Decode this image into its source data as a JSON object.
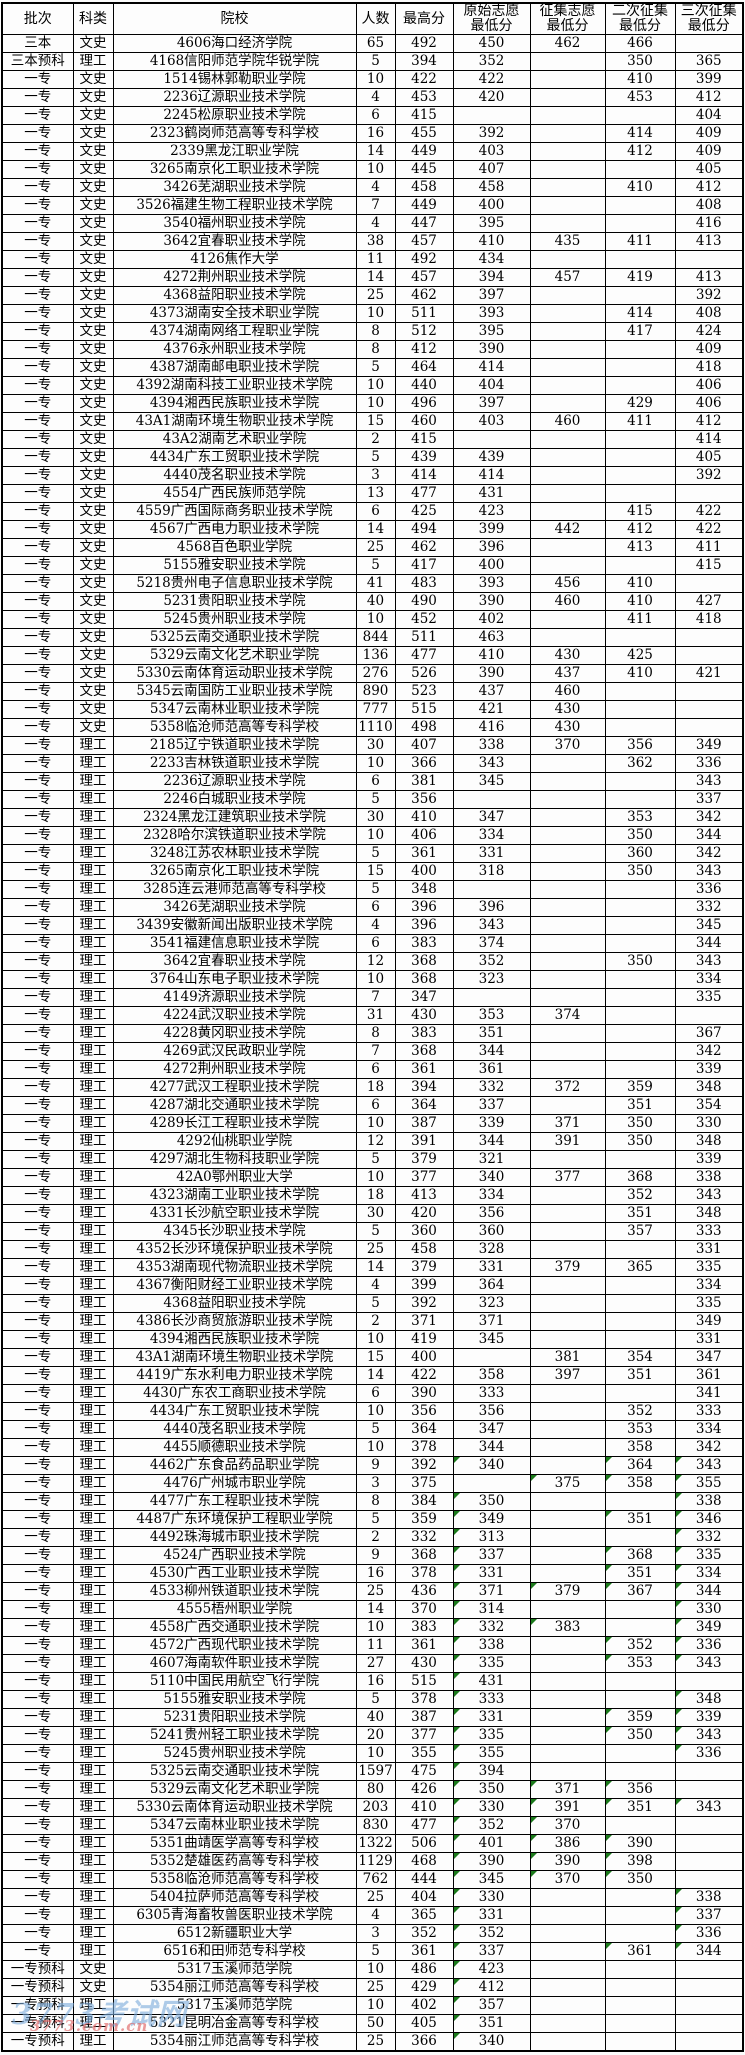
{
  "table": {
    "columns": [
      {
        "key": "batch",
        "label": "批次"
      },
      {
        "key": "category",
        "label": "科类"
      },
      {
        "key": "school",
        "label": "院校"
      },
      {
        "key": "count",
        "label": "人数"
      },
      {
        "key": "max-score",
        "label": "最高分"
      },
      {
        "key": "original-volunteer-min",
        "label": "原始志愿\n最低分"
      },
      {
        "key": "collected-volunteer-min",
        "label": "征集志愿\n最低分"
      },
      {
        "key": "second-collection-min",
        "label": "二次征集\n最低分"
      },
      {
        "key": "third-collection-min",
        "label": "三次征集\n最低分"
      }
    ],
    "rows": [
      [
        "三本",
        "文史",
        "4606海口经济学院",
        "65",
        "492",
        "450",
        "462",
        "466",
        ""
      ],
      [
        "三本预科",
        "理工",
        "4168信阳师范学院华锐学院",
        "5",
        "394",
        "352",
        "",
        "350",
        "365"
      ],
      [
        "一专",
        "文史",
        "1514锡林郭勒职业学院",
        "10",
        "422",
        "422",
        "",
        "410",
        "399"
      ],
      [
        "一专",
        "文史",
        "2236辽源职业技术学院",
        "4",
        "453",
        "420",
        "",
        "453",
        "412"
      ],
      [
        "一专",
        "文史",
        "2245松原职业技术学院",
        "6",
        "415",
        "",
        "",
        "",
        "404"
      ],
      [
        "一专",
        "文史",
        "2323鹤岗师范高等专科学校",
        "16",
        "455",
        "392",
        "",
        "414",
        "409"
      ],
      [
        "一专",
        "文史",
        "2339黑龙江职业学院",
        "14",
        "449",
        "403",
        "",
        "412",
        "409"
      ],
      [
        "一专",
        "文史",
        "3265南京化工职业技术学院",
        "10",
        "445",
        "407",
        "",
        "",
        "405"
      ],
      [
        "一专",
        "文史",
        "3426芜湖职业技术学院",
        "4",
        "458",
        "458",
        "",
        "410",
        "412"
      ],
      [
        "一专",
        "文史",
        "3526福建生物工程职业技术学院",
        "7",
        "449",
        "400",
        "",
        "",
        "408"
      ],
      [
        "一专",
        "文史",
        "3540福州职业技术学院",
        "4",
        "447",
        "395",
        "",
        "",
        "416"
      ],
      [
        "一专",
        "文史",
        "3642宜春职业技术学院",
        "38",
        "457",
        "410",
        "435",
        "411",
        "413"
      ],
      [
        "一专",
        "文史",
        "4126焦作大学",
        "11",
        "492",
        "434",
        "",
        "",
        ""
      ],
      [
        "一专",
        "文史",
        "4272荆州职业技术学院",
        "14",
        "457",
        "394",
        "457",
        "419",
        "413"
      ],
      [
        "一专",
        "文史",
        "4368益阳职业技术学院",
        "25",
        "462",
        "397",
        "",
        "",
        "392"
      ],
      [
        "一专",
        "文史",
        "4373湖南安全技术职业学院",
        "10",
        "511",
        "393",
        "",
        "414",
        "408"
      ],
      [
        "一专",
        "文史",
        "4374湖南网络工程职业学院",
        "8",
        "512",
        "395",
        "",
        "417",
        "424"
      ],
      [
        "一专",
        "文史",
        "4376永州职业技术学院",
        "8",
        "412",
        "390",
        "",
        "",
        "409"
      ],
      [
        "一专",
        "文史",
        "4387湖南邮电职业技术学院",
        "5",
        "464",
        "414",
        "",
        "",
        "418"
      ],
      [
        "一专",
        "文史",
        "4392湖南科技工业职业技术学院",
        "10",
        "440",
        "404",
        "",
        "",
        "406"
      ],
      [
        "一专",
        "文史",
        "4394湘西民族职业技术学院",
        "10",
        "496",
        "397",
        "",
        "429",
        "406"
      ],
      [
        "一专",
        "文史",
        "43A1湖南环境生物职业技术学院",
        "15",
        "460",
        "403",
        "460",
        "411",
        "412"
      ],
      [
        "一专",
        "文史",
        "43A2湖南艺术职业学院",
        "2",
        "415",
        "",
        "",
        "",
        "414"
      ],
      [
        "一专",
        "文史",
        "4434广东工贸职业技术学院",
        "5",
        "439",
        "439",
        "",
        "",
        "405"
      ],
      [
        "一专",
        "文史",
        "4440茂名职业技术学院",
        "3",
        "414",
        "414",
        "",
        "",
        "392"
      ],
      [
        "一专",
        "文史",
        "4554广西民族师范学院",
        "13",
        "477",
        "431",
        "",
        "",
        ""
      ],
      [
        "一专",
        "文史",
        "4559广西国际商务职业技术学院",
        "6",
        "425",
        "423",
        "",
        "415",
        "422"
      ],
      [
        "一专",
        "文史",
        "4567广西电力职业技术学院",
        "14",
        "494",
        "399",
        "442",
        "412",
        "422"
      ],
      [
        "一专",
        "文史",
        "4568百色职业学院",
        "25",
        "462",
        "396",
        "",
        "413",
        "411"
      ],
      [
        "一专",
        "文史",
        "5155雅安职业技术学院",
        "5",
        "417",
        "400",
        "",
        "",
        "415"
      ],
      [
        "一专",
        "文史",
        "5218贵州电子信息职业技术学院",
        "41",
        "483",
        "393",
        "456",
        "410",
        ""
      ],
      [
        "一专",
        "文史",
        "5231贵阳职业技术学院",
        "40",
        "490",
        "390",
        "460",
        "410",
        "427"
      ],
      [
        "一专",
        "文史",
        "5245贵州职业技术学院",
        "10",
        "452",
        "402",
        "",
        "411",
        "418"
      ],
      [
        "一专",
        "文史",
        "5325云南交通职业技术学院",
        "844",
        "511",
        "463",
        "",
        "",
        ""
      ],
      [
        "一专",
        "文史",
        "5329云南文化艺术职业学院",
        "136",
        "477",
        "410",
        "430",
        "425",
        ""
      ],
      [
        "一专",
        "文史",
        "5330云南体育运动职业技术学院",
        "276",
        "526",
        "390",
        "437",
        "410",
        "421"
      ],
      [
        "一专",
        "文史",
        "5345云南国防工业职业技术学院",
        "890",
        "523",
        "437",
        "460",
        "",
        ""
      ],
      [
        "一专",
        "文史",
        "5347云南林业职业技术学院",
        "777",
        "515",
        "421",
        "430",
        "",
        ""
      ],
      [
        "一专",
        "文史",
        "5358临沧师范高等专科学校",
        "1110",
        "498",
        "416",
        "430",
        "",
        ""
      ],
      [
        "一专",
        "理工",
        "2185辽宁铁道职业技术学院",
        "30",
        "407",
        "338",
        "370",
        "356",
        "349"
      ],
      [
        "一专",
        "理工",
        "2233吉林铁道职业技术学院",
        "10",
        "366",
        "343",
        "",
        "362",
        "336"
      ],
      [
        "一专",
        "理工",
        "2236辽源职业技术学院",
        "6",
        "381",
        "345",
        "",
        "",
        "343"
      ],
      [
        "一专",
        "理工",
        "2246白城职业技术学院",
        "5",
        "356",
        "",
        "",
        "",
        "337"
      ],
      [
        "一专",
        "理工",
        "2324黑龙江建筑职业技术学院",
        "30",
        "410",
        "347",
        "",
        "353",
        "342"
      ],
      [
        "一专",
        "理工",
        "2328哈尔滨铁道职业技术学院",
        "10",
        "406",
        "334",
        "",
        "350",
        "344"
      ],
      [
        "一专",
        "理工",
        "3248江苏农林职业技术学院",
        "5",
        "361",
        "331",
        "",
        "360",
        "342"
      ],
      [
        "一专",
        "理工",
        "3265南京化工职业技术学院",
        "15",
        "400",
        "318",
        "",
        "350",
        "343"
      ],
      [
        "一专",
        "理工",
        "3285连云港师范高等专科学校",
        "5",
        "348",
        "",
        "",
        "",
        "336"
      ],
      [
        "一专",
        "理工",
        "3426芜湖职业技术学院",
        "6",
        "396",
        "396",
        "",
        "",
        "332"
      ],
      [
        "一专",
        "理工",
        "3439安徽新闻出版职业技术学院",
        "4",
        "396",
        "343",
        "",
        "",
        "345"
      ],
      [
        "一专",
        "理工",
        "3541福建信息职业技术学院",
        "6",
        "383",
        "374",
        "",
        "",
        "344"
      ],
      [
        "一专",
        "理工",
        "3642宜春职业技术学院",
        "12",
        "368",
        "352",
        "",
        "350",
        "343"
      ],
      [
        "一专",
        "理工",
        "3764山东电子职业技术学院",
        "10",
        "368",
        "323",
        "",
        "",
        "334"
      ],
      [
        "一专",
        "理工",
        "4149济源职业技术学院",
        "7",
        "347",
        "",
        "",
        "",
        "335"
      ],
      [
        "一专",
        "理工",
        "4224武汉职业技术学院",
        "31",
        "430",
        "353",
        "374",
        "",
        ""
      ],
      [
        "一专",
        "理工",
        "4228黄冈职业技术学院",
        "8",
        "383",
        "351",
        "",
        "",
        "367"
      ],
      [
        "一专",
        "理工",
        "4269武汉民政职业学院",
        "7",
        "368",
        "344",
        "",
        "",
        "342"
      ],
      [
        "一专",
        "理工",
        "4272荆州职业技术学院",
        "6",
        "361",
        "361",
        "",
        "",
        "339"
      ],
      [
        "一专",
        "理工",
        "4277武汉工程职业技术学院",
        "18",
        "394",
        "332",
        "372",
        "359",
        "348"
      ],
      [
        "一专",
        "理工",
        "4287湖北交通职业技术学院",
        "6",
        "364",
        "337",
        "",
        "351",
        "354"
      ],
      [
        "一专",
        "理工",
        "4289长江工程职业技术学院",
        "10",
        "387",
        "339",
        "371",
        "350",
        "330"
      ],
      [
        "一专",
        "理工",
        "4292仙桃职业学院",
        "12",
        "391",
        "344",
        "391",
        "350",
        "348"
      ],
      [
        "一专",
        "理工",
        "4297湖北生物科技职业学院",
        "5",
        "379",
        "321",
        "",
        "",
        "339"
      ],
      [
        "一专",
        "理工",
        "42A0鄂州职业大学",
        "10",
        "377",
        "340",
        "377",
        "368",
        "338"
      ],
      [
        "一专",
        "理工",
        "4323湖南工业职业技术学院",
        "18",
        "413",
        "334",
        "",
        "352",
        "343"
      ],
      [
        "一专",
        "理工",
        "4331长沙航空职业技术学院",
        "30",
        "420",
        "356",
        "",
        "351",
        "348"
      ],
      [
        "一专",
        "理工",
        "4345长沙职业技术学院",
        "5",
        "360",
        "360",
        "",
        "357",
        "333"
      ],
      [
        "一专",
        "理工",
        "4352长沙环境保护职业技术学院",
        "25",
        "458",
        "328",
        "",
        "",
        "331"
      ],
      [
        "一专",
        "理工",
        "4353湖南现代物流职业技术学院",
        "14",
        "379",
        "331",
        "379",
        "365",
        "335"
      ],
      [
        "一专",
        "理工",
        "4367衡阳财经工业职业技术学院",
        "4",
        "399",
        "364",
        "",
        "",
        "334"
      ],
      [
        "一专",
        "理工",
        "4368益阳职业技术学院",
        "5",
        "392",
        "323",
        "",
        "",
        "335"
      ],
      [
        "一专",
        "理工",
        "4386长沙商贸旅游职业技术学院",
        "2",
        "371",
        "371",
        "",
        "",
        "349"
      ],
      [
        "一专",
        "理工",
        "4394湘西民族职业技术学院",
        "10",
        "419",
        "345",
        "",
        "",
        "331"
      ],
      [
        "一专",
        "理工",
        "43A1湖南环境生物职业技术学院",
        "15",
        "400",
        "",
        "381",
        "354",
        "347"
      ],
      [
        "一专",
        "理工",
        "4419广东水利电力职业技术学院",
        "14",
        "422",
        "358",
        "397",
        "351",
        "361"
      ],
      [
        "一专",
        "理工",
        "4430广东农工商职业技术学院",
        "6",
        "390",
        "333",
        "",
        "",
        "341"
      ],
      [
        "一专",
        "理工",
        "4434广东工贸职业技术学院",
        "10",
        "356",
        "356",
        "",
        "352",
        "333"
      ],
      [
        "一专",
        "理工",
        "4440茂名职业技术学院",
        "5",
        "364",
        "347",
        "",
        "353",
        "334"
      ],
      [
        "一专",
        "理工",
        "4455顺德职业技术学院",
        "10",
        "378",
        "344",
        "",
        "358",
        "342"
      ],
      [
        "一专",
        "理工",
        "4462广东食品药品职业学院",
        "9",
        "392",
        "340",
        "",
        "364",
        "343"
      ],
      [
        "一专",
        "理工",
        "4476广州城市职业学院",
        "3",
        "375",
        "",
        "375",
        "358",
        "355"
      ],
      [
        "一专",
        "理工",
        "4477广东工程职业技术学院",
        "8",
        "384",
        "350",
        "",
        "",
        "338"
      ],
      [
        "一专",
        "理工",
        "4487广东环境保护工程职业学院",
        "5",
        "359",
        "349",
        "",
        "351",
        "346"
      ],
      [
        "一专",
        "理工",
        "4492珠海城市职业技术学院",
        "2",
        "332",
        "313",
        "",
        "",
        "332"
      ],
      [
        "一专",
        "理工",
        "4524广西职业技术学院",
        "9",
        "368",
        "337",
        "",
        "368",
        "335"
      ],
      [
        "一专",
        "理工",
        "4530广西工业职业技术学院",
        "16",
        "378",
        "331",
        "",
        "351",
        "334"
      ],
      [
        "一专",
        "理工",
        "4533柳州铁道职业技术学院",
        "25",
        "436",
        "371",
        "379",
        "367",
        "344"
      ],
      [
        "一专",
        "理工",
        "4555梧州职业学院",
        "14",
        "370",
        "314",
        "",
        "",
        "330"
      ],
      [
        "一专",
        "理工",
        "4558广西交通职业技术学院",
        "10",
        "383",
        "332",
        "383",
        "",
        "349"
      ],
      [
        "一专",
        "理工",
        "4572广西现代职业技术学院",
        "11",
        "361",
        "338",
        "",
        "352",
        "336"
      ],
      [
        "一专",
        "理工",
        "4607海南软件职业技术学院",
        "27",
        "430",
        "335",
        "",
        "353",
        "343"
      ],
      [
        "一专",
        "理工",
        "5110中国民用航空飞行学院",
        "16",
        "515",
        "431",
        "",
        "",
        ""
      ],
      [
        "一专",
        "理工",
        "5155雅安职业技术学院",
        "5",
        "378",
        "333",
        "",
        "",
        "348"
      ],
      [
        "一专",
        "理工",
        "5231贵阳职业技术学院",
        "40",
        "387",
        "331",
        "",
        "359",
        "339"
      ],
      [
        "一专",
        "理工",
        "5241贵州轻工职业技术学院",
        "20",
        "377",
        "335",
        "",
        "350",
        "343"
      ],
      [
        "一专",
        "理工",
        "5245贵州职业技术学院",
        "10",
        "355",
        "355",
        "",
        "",
        "336"
      ],
      [
        "一专",
        "理工",
        "5325云南交通职业技术学院",
        "1597",
        "475",
        "394",
        "",
        "",
        ""
      ],
      [
        "一专",
        "理工",
        "5329云南文化艺术职业学院",
        "80",
        "426",
        "350",
        "371",
        "356",
        ""
      ],
      [
        "一专",
        "理工",
        "5330云南体育运动职业技术学院",
        "203",
        "410",
        "330",
        "391",
        "351",
        "343"
      ],
      [
        "一专",
        "理工",
        "5347云南林业职业技术学院",
        "830",
        "477",
        "352",
        "370",
        "",
        ""
      ],
      [
        "一专",
        "理工",
        "5351曲靖医学高等专科学校",
        "1322",
        "506",
        "401",
        "386",
        "390",
        ""
      ],
      [
        "一专",
        "理工",
        "5352楚雄医药高等专科学校",
        "1129",
        "468",
        "390",
        "390",
        "398",
        ""
      ],
      [
        "一专",
        "理工",
        "5358临沧师范高等专科学校",
        "762",
        "444",
        "345",
        "370",
        "350",
        ""
      ],
      [
        "一专",
        "理工",
        "5404拉萨师范高等专科学校",
        "25",
        "404",
        "330",
        "",
        "",
        "338"
      ],
      [
        "一专",
        "理工",
        "6305青海畜牧兽医职业技术学院",
        "4",
        "365",
        "331",
        "",
        "",
        "337"
      ],
      [
        "一专",
        "理工",
        "6512新疆职业大学",
        "3",
        "352",
        "352",
        "",
        "",
        "336"
      ],
      [
        "一专",
        "理工",
        "6516和田师范专科学校",
        "5",
        "361",
        "337",
        "",
        "361",
        "344"
      ],
      [
        "一专预科",
        "文史",
        "5317玉溪师范学院",
        "10",
        "486",
        "423",
        "",
        "",
        ""
      ],
      [
        "一专预科",
        "文史",
        "5354丽江师范高等专科学校",
        "25",
        "429",
        "412",
        "",
        "",
        ""
      ],
      [
        "一专预科",
        "理工",
        "5317玉溪师范学院",
        "10",
        "402",
        "357",
        "",
        "",
        ""
      ],
      [
        "一专预科",
        "理工",
        "5321昆明冶金高等专科学校",
        "50",
        "405",
        "351",
        "",
        "",
        ""
      ],
      [
        "一专预科",
        "理工",
        "5354丽江师范高等专科学校",
        "25",
        "366",
        "340",
        "",
        "",
        ""
      ]
    ]
  },
  "annotations": {
    "green_triangle": {
      "meaning": "cell-comment-flag",
      "color": "#1b7a1b",
      "from_row_index": 79,
      "columns": [
        5,
        6,
        7,
        8
      ]
    }
  },
  "watermark": {
    "title": "3773考试网",
    "url": "3773.com.cn",
    "title_color": "#7aaadb",
    "url_color": "#e16464"
  }
}
